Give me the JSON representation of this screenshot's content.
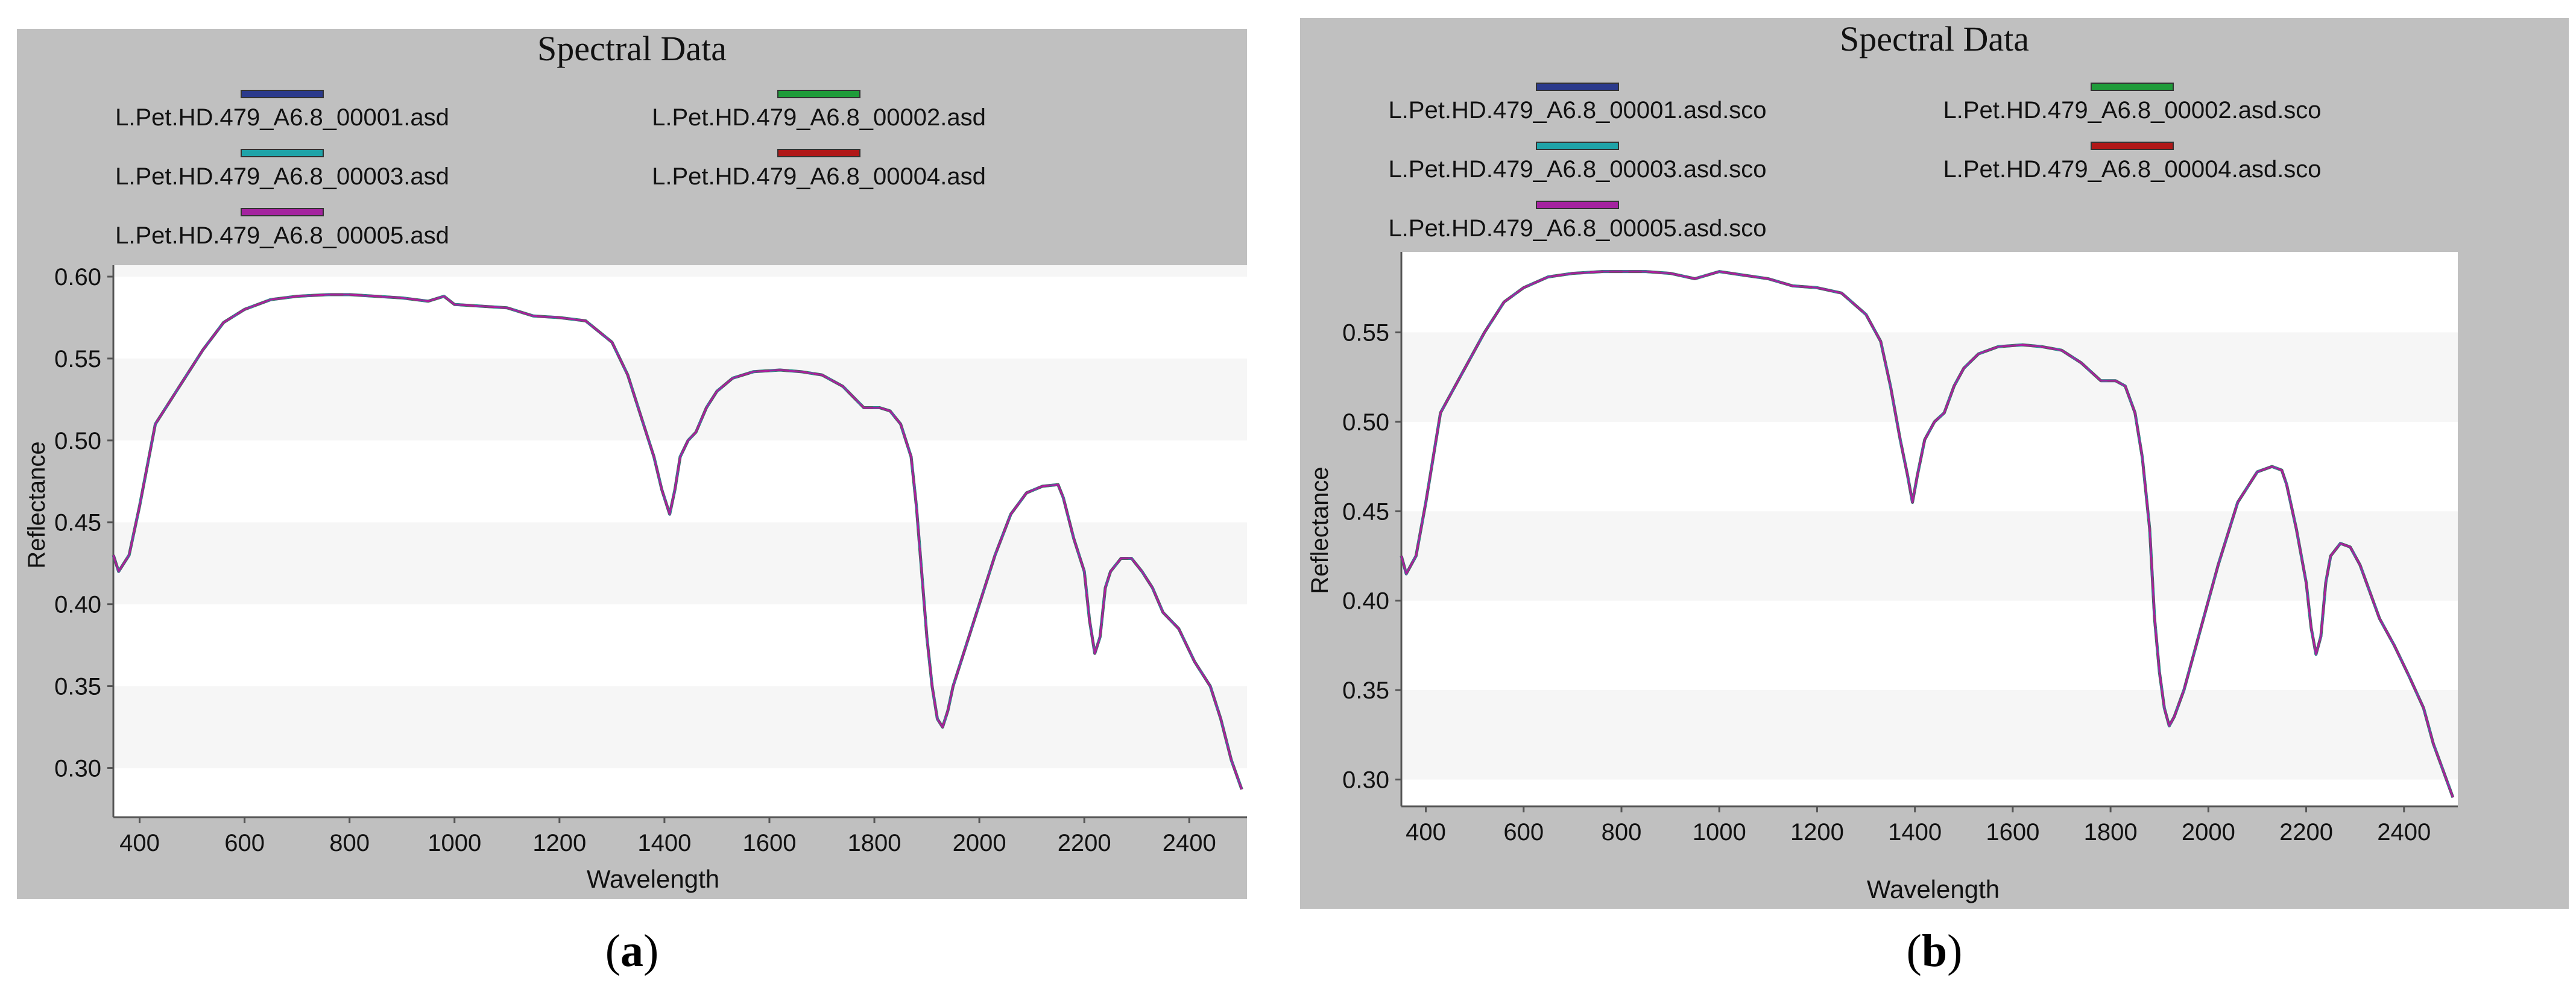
{
  "chart_data": [
    {
      "type": "line",
      "caption": "a",
      "title": "Spectral Data",
      "xlabel": "Wavelength",
      "ylabel": "Reflectance",
      "xlim": [
        350,
        2510
      ],
      "ylim": [
        0.27,
        0.607
      ],
      "xticks": [
        "400",
        "600",
        "800",
        "1000",
        "1200",
        "1400",
        "1600",
        "1800",
        "2000",
        "2200",
        "2400"
      ],
      "yticks": [
        "0.30",
        "0.35",
        "0.40",
        "0.45",
        "0.50",
        "0.55",
        "0.60"
      ],
      "grid": "horizontal bands",
      "legend_position": "top",
      "series_colors": [
        "#2b3a8c",
        "#1f9c3a",
        "#1fa3a8",
        "#b01818",
        "#a4239f"
      ],
      "series_names": [
        "L.Pet.HD.479_A6.8_00001.asd",
        "L.Pet.HD.479_A6.8_00002.asd",
        "L.Pet.HD.479_A6.8_00003.asd",
        "L.Pet.HD.479_A6.8_00004.asd",
        "L.Pet.HD.479_A6.8_00005.asd"
      ],
      "x": [
        350,
        360,
        380,
        400,
        430,
        470,
        520,
        560,
        600,
        650,
        700,
        760,
        800,
        850,
        900,
        950,
        980,
        1000,
        1050,
        1100,
        1150,
        1200,
        1250,
        1300,
        1330,
        1360,
        1380,
        1395,
        1410,
        1420,
        1430,
        1445,
        1460,
        1480,
        1500,
        1530,
        1570,
        1620,
        1660,
        1700,
        1740,
        1780,
        1810,
        1830,
        1850,
        1870,
        1880,
        1890,
        1900,
        1910,
        1920,
        1930,
        1940,
        1950,
        1970,
        2000,
        2030,
        2060,
        2090,
        2120,
        2150,
        2160,
        2180,
        2200,
        2210,
        2220,
        2230,
        2240,
        2250,
        2270,
        2290,
        2310,
        2330,
        2350,
        2380,
        2410,
        2440,
        2460,
        2480,
        2500
      ],
      "y": [
        0.43,
        0.42,
        0.43,
        0.46,
        0.51,
        0.53,
        0.555,
        0.572,
        0.58,
        0.586,
        0.588,
        0.589,
        0.589,
        0.588,
        0.587,
        0.585,
        0.588,
        0.583,
        0.582,
        0.581,
        0.576,
        0.575,
        0.573,
        0.56,
        0.54,
        0.51,
        0.49,
        0.47,
        0.455,
        0.47,
        0.49,
        0.5,
        0.505,
        0.52,
        0.53,
        0.538,
        0.542,
        0.543,
        0.542,
        0.54,
        0.533,
        0.52,
        0.52,
        0.518,
        0.51,
        0.49,
        0.46,
        0.42,
        0.38,
        0.35,
        0.33,
        0.325,
        0.335,
        0.35,
        0.37,
        0.4,
        0.43,
        0.455,
        0.468,
        0.472,
        0.473,
        0.465,
        0.44,
        0.42,
        0.39,
        0.37,
        0.38,
        0.41,
        0.42,
        0.428,
        0.428,
        0.42,
        0.41,
        0.395,
        0.385,
        0.365,
        0.35,
        0.33,
        0.305,
        0.287
      ]
    },
    {
      "type": "line",
      "caption": "b",
      "title": "Spectral Data",
      "xlabel": "Wavelength",
      "ylabel": "Reflectance",
      "xlim": [
        350,
        2510
      ],
      "ylim": [
        0.285,
        0.595
      ],
      "xticks": [
        "400",
        "600",
        "800",
        "1000",
        "1200",
        "1400",
        "1600",
        "1800",
        "2000",
        "2200",
        "2400"
      ],
      "yticks": [
        "0.30",
        "0.35",
        "0.40",
        "0.45",
        "0.50",
        "0.55"
      ],
      "grid": "horizontal bands",
      "legend_position": "top",
      "series_colors": [
        "#2b3a8c",
        "#1f9c3a",
        "#1fa3a8",
        "#b01818",
        "#a4239f"
      ],
      "series_names": [
        "L.Pet.HD.479_A6.8_00001.asd.sco",
        "L.Pet.HD.479_A6.8_00002.asd.sco",
        "L.Pet.HD.479_A6.8_00003.asd.sco",
        "L.Pet.HD.479_A6.8_00004.asd.sco",
        "L.Pet.HD.479_A6.8_00005.asd.sco"
      ],
      "x": [
        350,
        360,
        380,
        400,
        430,
        470,
        520,
        560,
        600,
        650,
        700,
        760,
        800,
        850,
        900,
        950,
        1000,
        1050,
        1100,
        1150,
        1200,
        1250,
        1300,
        1330,
        1350,
        1370,
        1385,
        1395,
        1405,
        1420,
        1440,
        1460,
        1480,
        1500,
        1530,
        1570,
        1620,
        1660,
        1700,
        1740,
        1780,
        1810,
        1830,
        1850,
        1865,
        1880,
        1890,
        1900,
        1910,
        1920,
        1930,
        1950,
        1980,
        2020,
        2060,
        2100,
        2130,
        2150,
        2160,
        2180,
        2200,
        2210,
        2220,
        2230,
        2240,
        2250,
        2270,
        2290,
        2310,
        2330,
        2350,
        2380,
        2410,
        2440,
        2460,
        2480,
        2500
      ],
      "y": [
        0.425,
        0.415,
        0.425,
        0.455,
        0.505,
        0.525,
        0.55,
        0.567,
        0.575,
        0.581,
        0.583,
        0.584,
        0.584,
        0.584,
        0.583,
        0.58,
        0.584,
        0.582,
        0.58,
        0.576,
        0.575,
        0.572,
        0.56,
        0.545,
        0.52,
        0.49,
        0.47,
        0.455,
        0.47,
        0.49,
        0.5,
        0.505,
        0.52,
        0.53,
        0.538,
        0.542,
        0.543,
        0.542,
        0.54,
        0.533,
        0.523,
        0.523,
        0.52,
        0.505,
        0.48,
        0.44,
        0.39,
        0.36,
        0.34,
        0.33,
        0.335,
        0.35,
        0.38,
        0.42,
        0.455,
        0.472,
        0.475,
        0.473,
        0.465,
        0.44,
        0.41,
        0.385,
        0.37,
        0.38,
        0.41,
        0.425,
        0.432,
        0.43,
        0.42,
        0.405,
        0.39,
        0.375,
        0.358,
        0.34,
        0.32,
        0.305,
        0.29
      ]
    }
  ]
}
